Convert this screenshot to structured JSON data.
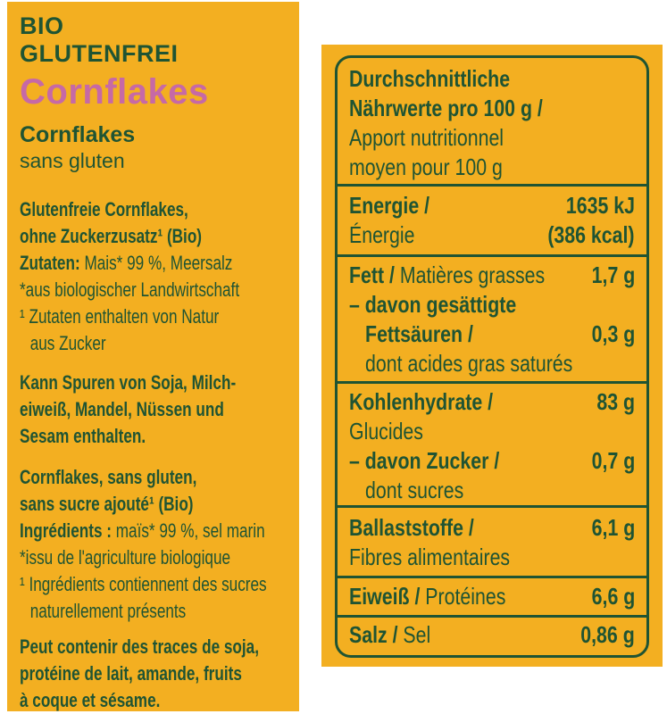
{
  "colors": {
    "background": "#ffffff",
    "panel_yellow": "#F3AF21",
    "text_green": "#1F5433",
    "brand_pink": "#C669A6"
  },
  "left_panel": {
    "brand_line1": "BIO",
    "brand_line2": "GLUTENFREI",
    "product_name": "Cornflakes",
    "subtitle_bold": "Cornflakes",
    "subtitle_regular": "sans gluten",
    "de_info": {
      "lines": [
        {
          "b": "Glutenfreie Cornflakes,",
          "r": ""
        },
        {
          "b": "ohne Zuckerzusatz¹ (Bio)",
          "r": ""
        },
        {
          "b": "Zutaten: ",
          "r": "Mais* 99 %, Meersalz"
        },
        {
          "b": "",
          "r": "*aus biologischer Landwirtschaft"
        },
        {
          "b": "",
          "r": "¹ Zutaten enthalten von Natur"
        },
        {
          "b": "",
          "r": "aus Zucker"
        }
      ]
    },
    "de_traces": {
      "lines": [
        {
          "b": "Kann Spuren von Soja, Milch-",
          "r": ""
        },
        {
          "b": "eiweiß, Mandel, Nüssen und",
          "r": ""
        },
        {
          "b": "Sesam enthalten.",
          "r": ""
        }
      ]
    },
    "fr_info": {
      "lines": [
        {
          "b": "Cornflakes, sans gluten,",
          "r": ""
        },
        {
          "b": "sans sucre ajouté¹ (Bio)",
          "r": ""
        },
        {
          "b": "Ingrédients : ",
          "r": "maïs* 99 %, sel marin"
        },
        {
          "b": "",
          "r": "*issu de l'agriculture biologique"
        },
        {
          "b": "",
          "r": "¹ Ingrédients contiennent des sucres"
        },
        {
          "b": "",
          "r": "naturellement présents"
        }
      ]
    },
    "fr_traces": {
      "lines": [
        {
          "b": "Peut contenir des traces de soja,",
          "r": ""
        },
        {
          "b": "protéine de lait, amande, fruits",
          "r": ""
        },
        {
          "b": "à coque et sésame.",
          "r": ""
        }
      ]
    }
  },
  "nutrition_table": {
    "header": {
      "lines": [
        {
          "b": "Durchschnittliche",
          "r": "",
          "v": ""
        },
        {
          "b": "Nährwerte pro 100 g /",
          "r": "",
          "v": ""
        },
        {
          "b": "",
          "r": "Apport nutritionnel",
          "v": ""
        },
        {
          "b": "",
          "r": "moyen pour 100 g",
          "v": ""
        }
      ]
    },
    "energy": {
      "lines": [
        {
          "b": "Energie / ",
          "r": "",
          "v": "1635 kJ"
        },
        {
          "b": "",
          "r": "Énergie",
          "v": "(386 kcal)"
        }
      ]
    },
    "fat": {
      "lines": [
        {
          "b": "Fett / ",
          "r": "Matières grasses",
          "v": "1,7 g"
        },
        {
          "b": "– davon gesättigte",
          "r": "",
          "v": ""
        },
        {
          "b": "Fettsäuren /",
          "r": "",
          "v": "0,3 g"
        },
        {
          "b": "",
          "r": "dont acides gras saturés",
          "v": ""
        }
      ]
    },
    "carbohydrates": {
      "lines": [
        {
          "b": "Kohlenhydrate /",
          "r": "",
          "v": "83 g"
        },
        {
          "b": "",
          "r": "Glucides",
          "v": ""
        },
        {
          "b": "– davon Zucker /",
          "r": "",
          "v": "0,7 g"
        },
        {
          "b": "",
          "r": "dont sucres",
          "v": ""
        }
      ]
    },
    "fiber": {
      "lines": [
        {
          "b": "Ballaststoffe /",
          "r": "",
          "v": "6,1 g"
        },
        {
          "b": "",
          "r": "Fibres alimentaires",
          "v": ""
        }
      ]
    },
    "protein": {
      "lines": [
        {
          "b": "Eiweiß / ",
          "r": "Protéines",
          "v": "6,6 g"
        }
      ]
    },
    "salt": {
      "lines": [
        {
          "b": "Salz / ",
          "r": "Sel",
          "v": "0,86 g"
        }
      ]
    }
  }
}
